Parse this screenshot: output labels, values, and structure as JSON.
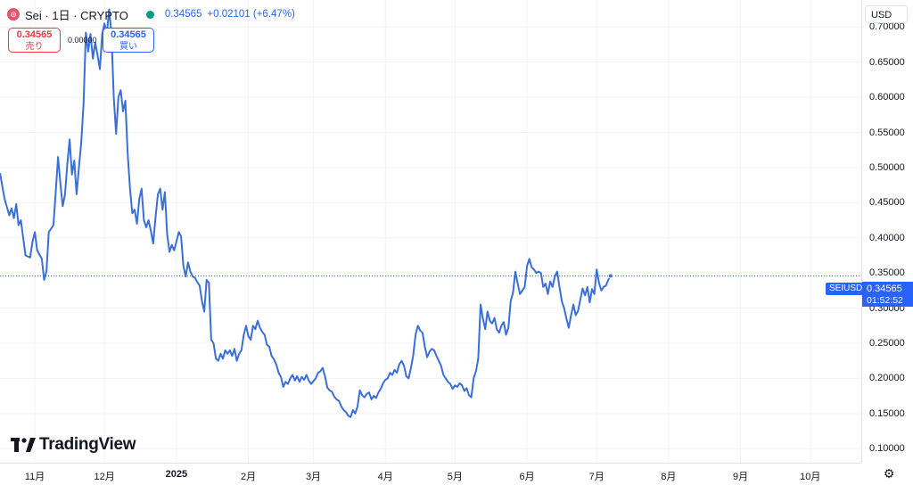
{
  "header": {
    "symbol_icon": "sei-coin-icon",
    "symbol": "Sei · 1日 · CRYPTO",
    "price": "0.34565",
    "change": "+0.02101 (+6.47%)",
    "status_color": "#089981"
  },
  "trade": {
    "sell_price": "0.34565",
    "sell_label": "売り",
    "spread": "0.00000",
    "buy_price": "0.34565",
    "buy_label": "買い"
  },
  "currency": "USD",
  "settings_icon": "gear-icon",
  "logo": {
    "text": "TradingView"
  },
  "last_price": {
    "symbol": "SEIUSD",
    "price": "0.34565",
    "countdown": "01:52:52"
  },
  "colors": {
    "line": "#3a6fd8",
    "accent": "#2962ff",
    "sell": "#f23645"
  },
  "chart_data": {
    "type": "line",
    "title": "",
    "series_name": "SEIUSD",
    "ylim": [
      0.08,
      0.7384
    ],
    "y_ticks": [
      "0.70000",
      "0.65000",
      "0.60000",
      "0.55000",
      "0.50000",
      "0.45000",
      "0.40000",
      "0.35000",
      "0.30000",
      "0.25000",
      "0.20000",
      "0.15000",
      "0.10000"
    ],
    "x_ticks": [
      {
        "label": "11月",
        "date": "2024-11-01"
      },
      {
        "label": "12月",
        "date": "2024-12-01"
      },
      {
        "label": "2025",
        "date": "2025-01-01",
        "bold": true
      },
      {
        "label": "2月",
        "date": "2025-02-01"
      },
      {
        "label": "3月",
        "date": "2025-03-01"
      },
      {
        "label": "4月",
        "date": "2025-04-01"
      },
      {
        "label": "5月",
        "date": "2025-05-01"
      },
      {
        "label": "6月",
        "date": "2025-06-01"
      },
      {
        "label": "7月",
        "date": "2025-07-01"
      },
      {
        "label": "8月",
        "date": "2025-08-01"
      },
      {
        "label": "9月",
        "date": "2025-09-01"
      },
      {
        "label": "10月",
        "date": "2025-10-01"
      }
    ],
    "x_range": [
      "2024-10-17",
      "2025-10-23"
    ],
    "last_value": 0.34565,
    "points": [
      [
        "2024-10-17",
        0.492
      ],
      [
        "2024-10-19",
        0.455
      ],
      [
        "2024-10-21",
        0.432
      ],
      [
        "2024-10-22",
        0.442
      ],
      [
        "2024-10-23",
        0.428
      ],
      [
        "2024-10-24",
        0.448
      ],
      [
        "2024-10-25",
        0.418
      ],
      [
        "2024-10-26",
        0.425
      ],
      [
        "2024-10-28",
        0.375
      ],
      [
        "2024-10-30",
        0.372
      ],
      [
        "2024-10-31",
        0.395
      ],
      [
        "2024-11-01",
        0.408
      ],
      [
        "2024-11-02",
        0.382
      ],
      [
        "2024-11-04",
        0.37
      ],
      [
        "2024-11-05",
        0.34
      ],
      [
        "2024-11-06",
        0.352
      ],
      [
        "2024-11-07",
        0.408
      ],
      [
        "2024-11-09",
        0.418
      ],
      [
        "2024-11-10",
        0.465
      ],
      [
        "2024-11-11",
        0.515
      ],
      [
        "2024-11-12",
        0.478
      ],
      [
        "2024-11-13",
        0.445
      ],
      [
        "2024-11-14",
        0.462
      ],
      [
        "2024-11-15",
        0.505
      ],
      [
        "2024-11-16",
        0.54
      ],
      [
        "2024-11-17",
        0.49
      ],
      [
        "2024-11-18",
        0.51
      ],
      [
        "2024-11-19",
        0.462
      ],
      [
        "2024-11-20",
        0.5
      ],
      [
        "2024-11-21",
        0.535
      ],
      [
        "2024-11-22",
        0.59
      ],
      [
        "2024-11-23",
        0.692
      ],
      [
        "2024-11-24",
        0.665
      ],
      [
        "2024-11-25",
        0.69
      ],
      [
        "2024-11-26",
        0.655
      ],
      [
        "2024-11-27",
        0.678
      ],
      [
        "2024-11-28",
        0.66
      ],
      [
        "2024-11-29",
        0.64
      ],
      [
        "2024-11-30",
        0.69
      ],
      [
        "2024-12-01",
        0.705
      ],
      [
        "2024-12-02",
        0.69
      ],
      [
        "2024-12-03",
        0.725
      ],
      [
        "2024-12-04",
        0.69
      ],
      [
        "2024-12-05",
        0.6
      ],
      [
        "2024-12-06",
        0.548
      ],
      [
        "2024-12-07",
        0.6
      ],
      [
        "2024-12-08",
        0.61
      ],
      [
        "2024-12-09",
        0.58
      ],
      [
        "2024-12-10",
        0.595
      ],
      [
        "2024-12-11",
        0.52
      ],
      [
        "2024-12-12",
        0.47
      ],
      [
        "2024-12-13",
        0.435
      ],
      [
        "2024-12-14",
        0.44
      ],
      [
        "2024-12-15",
        0.42
      ],
      [
        "2024-12-16",
        0.455
      ],
      [
        "2024-12-17",
        0.47
      ],
      [
        "2024-12-18",
        0.425
      ],
      [
        "2024-12-19",
        0.415
      ],
      [
        "2024-12-20",
        0.425
      ],
      [
        "2024-12-21",
        0.41
      ],
      [
        "2024-12-22",
        0.392
      ],
      [
        "2024-12-23",
        0.43
      ],
      [
        "2024-12-24",
        0.462
      ],
      [
        "2024-12-25",
        0.47
      ],
      [
        "2024-12-26",
        0.44
      ],
      [
        "2024-12-27",
        0.465
      ],
      [
        "2024-12-28",
        0.405
      ],
      [
        "2024-12-29",
        0.38
      ],
      [
        "2024-12-30",
        0.39
      ],
      [
        "2024-12-31",
        0.382
      ],
      [
        "2025-01-01",
        0.395
      ],
      [
        "2025-01-02",
        0.408
      ],
      [
        "2025-01-03",
        0.402
      ],
      [
        "2025-01-04",
        0.36
      ],
      [
        "2025-01-05",
        0.345
      ],
      [
        "2025-01-06",
        0.365
      ],
      [
        "2025-01-07",
        0.352
      ],
      [
        "2025-01-08",
        0.345
      ],
      [
        "2025-01-09",
        0.343
      ],
      [
        "2025-01-10",
        0.337
      ],
      [
        "2025-01-11",
        0.332
      ],
      [
        "2025-01-12",
        0.31
      ],
      [
        "2025-01-13",
        0.295
      ],
      [
        "2025-01-14",
        0.34
      ],
      [
        "2025-01-15",
        0.336
      ],
      [
        "2025-01-16",
        0.255
      ],
      [
        "2025-01-17",
        0.25
      ],
      [
        "2025-01-18",
        0.228
      ],
      [
        "2025-01-19",
        0.225
      ],
      [
        "2025-01-20",
        0.235
      ],
      [
        "2025-01-21",
        0.228
      ],
      [
        "2025-01-22",
        0.24
      ],
      [
        "2025-01-23",
        0.235
      ],
      [
        "2025-01-24",
        0.24
      ],
      [
        "2025-01-25",
        0.232
      ],
      [
        "2025-01-26",
        0.242
      ],
      [
        "2025-01-27",
        0.225
      ],
      [
        "2025-01-28",
        0.235
      ],
      [
        "2025-01-29",
        0.24
      ],
      [
        "2025-01-30",
        0.262
      ],
      [
        "2025-01-31",
        0.275
      ],
      [
        "2025-02-01",
        0.26
      ],
      [
        "2025-02-02",
        0.255
      ],
      [
        "2025-02-03",
        0.275
      ],
      [
        "2025-02-04",
        0.27
      ],
      [
        "2025-02-05",
        0.282
      ],
      [
        "2025-02-06",
        0.272
      ],
      [
        "2025-02-07",
        0.266
      ],
      [
        "2025-02-08",
        0.262
      ],
      [
        "2025-02-09",
        0.248
      ],
      [
        "2025-02-10",
        0.245
      ],
      [
        "2025-02-11",
        0.232
      ],
      [
        "2025-02-12",
        0.227
      ],
      [
        "2025-02-13",
        0.22
      ],
      [
        "2025-02-14",
        0.208
      ],
      [
        "2025-02-15",
        0.202
      ],
      [
        "2025-02-16",
        0.188
      ],
      [
        "2025-02-17",
        0.195
      ],
      [
        "2025-02-18",
        0.192
      ],
      [
        "2025-02-19",
        0.2
      ],
      [
        "2025-02-20",
        0.205
      ],
      [
        "2025-02-21",
        0.197
      ],
      [
        "2025-02-22",
        0.203
      ],
      [
        "2025-02-23",
        0.195
      ],
      [
        "2025-02-24",
        0.202
      ],
      [
        "2025-02-25",
        0.198
      ],
      [
        "2025-02-26",
        0.205
      ],
      [
        "2025-02-27",
        0.197
      ],
      [
        "2025-02-28",
        0.192
      ],
      [
        "2025-03-02",
        0.2
      ],
      [
        "2025-03-03",
        0.208
      ],
      [
        "2025-03-04",
        0.21
      ],
      [
        "2025-03-05",
        0.215
      ],
      [
        "2025-03-06",
        0.203
      ],
      [
        "2025-03-07",
        0.187
      ],
      [
        "2025-03-08",
        0.183
      ],
      [
        "2025-03-09",
        0.181
      ],
      [
        "2025-03-10",
        0.174
      ],
      [
        "2025-03-11",
        0.17
      ],
      [
        "2025-03-12",
        0.168
      ],
      [
        "2025-03-13",
        0.16
      ],
      [
        "2025-03-14",
        0.155
      ],
      [
        "2025-03-15",
        0.152
      ],
      [
        "2025-03-16",
        0.147
      ],
      [
        "2025-03-17",
        0.145
      ],
      [
        "2025-03-18",
        0.155
      ],
      [
        "2025-03-19",
        0.15
      ],
      [
        "2025-03-20",
        0.16
      ],
      [
        "2025-03-21",
        0.183
      ],
      [
        "2025-03-22",
        0.176
      ],
      [
        "2025-03-23",
        0.173
      ],
      [
        "2025-03-24",
        0.178
      ],
      [
        "2025-03-25",
        0.18
      ],
      [
        "2025-03-26",
        0.17
      ],
      [
        "2025-03-27",
        0.175
      ],
      [
        "2025-03-28",
        0.172
      ],
      [
        "2025-03-29",
        0.18
      ],
      [
        "2025-03-30",
        0.185
      ],
      [
        "2025-03-31",
        0.193
      ],
      [
        "2025-04-01",
        0.198
      ],
      [
        "2025-04-02",
        0.2
      ],
      [
        "2025-04-03",
        0.208
      ],
      [
        "2025-04-04",
        0.205
      ],
      [
        "2025-04-05",
        0.212
      ],
      [
        "2025-04-06",
        0.208
      ],
      [
        "2025-04-07",
        0.22
      ],
      [
        "2025-04-08",
        0.225
      ],
      [
        "2025-04-09",
        0.218
      ],
      [
        "2025-04-10",
        0.203
      ],
      [
        "2025-04-11",
        0.2
      ],
      [
        "2025-04-12",
        0.215
      ],
      [
        "2025-04-13",
        0.233
      ],
      [
        "2025-04-14",
        0.262
      ],
      [
        "2025-04-15",
        0.275
      ],
      [
        "2025-04-16",
        0.268
      ],
      [
        "2025-04-17",
        0.265
      ],
      [
        "2025-04-18",
        0.245
      ],
      [
        "2025-04-19",
        0.23
      ],
      [
        "2025-04-20",
        0.238
      ],
      [
        "2025-04-21",
        0.242
      ],
      [
        "2025-04-22",
        0.24
      ],
      [
        "2025-04-23",
        0.232
      ],
      [
        "2025-04-24",
        0.225
      ],
      [
        "2025-04-25",
        0.218
      ],
      [
        "2025-04-26",
        0.205
      ],
      [
        "2025-04-27",
        0.2
      ],
      [
        "2025-04-28",
        0.195
      ],
      [
        "2025-04-29",
        0.192
      ],
      [
        "2025-04-30",
        0.185
      ],
      [
        "2025-05-01",
        0.19
      ],
      [
        "2025-05-02",
        0.188
      ],
      [
        "2025-05-03",
        0.193
      ],
      [
        "2025-05-04",
        0.19
      ],
      [
        "2025-05-05",
        0.182
      ],
      [
        "2025-05-06",
        0.186
      ],
      [
        "2025-05-07",
        0.176
      ],
      [
        "2025-05-08",
        0.173
      ],
      [
        "2025-05-09",
        0.2
      ],
      [
        "2025-05-10",
        0.21
      ],
      [
        "2025-05-11",
        0.228
      ],
      [
        "2025-05-12",
        0.305
      ],
      [
        "2025-05-13",
        0.285
      ],
      [
        "2025-05-14",
        0.27
      ],
      [
        "2025-05-15",
        0.295
      ],
      [
        "2025-05-16",
        0.282
      ],
      [
        "2025-05-17",
        0.278
      ],
      [
        "2025-05-18",
        0.286
      ],
      [
        "2025-05-19",
        0.27
      ],
      [
        "2025-05-20",
        0.265
      ],
      [
        "2025-05-21",
        0.275
      ],
      [
        "2025-05-22",
        0.28
      ],
      [
        "2025-05-23",
        0.262
      ],
      [
        "2025-05-24",
        0.272
      ],
      [
        "2025-05-25",
        0.31
      ],
      [
        "2025-05-26",
        0.322
      ],
      [
        "2025-05-27",
        0.352
      ],
      [
        "2025-05-28",
        0.335
      ],
      [
        "2025-05-29",
        0.32
      ],
      [
        "2025-05-30",
        0.325
      ],
      [
        "2025-05-31",
        0.33
      ],
      [
        "2025-06-01",
        0.36
      ],
      [
        "2025-06-02",
        0.37
      ],
      [
        "2025-06-03",
        0.358
      ],
      [
        "2025-06-04",
        0.355
      ],
      [
        "2025-06-05",
        0.35
      ],
      [
        "2025-06-06",
        0.352
      ],
      [
        "2025-06-07",
        0.35
      ],
      [
        "2025-06-08",
        0.33
      ],
      [
        "2025-06-09",
        0.335
      ],
      [
        "2025-06-10",
        0.32
      ],
      [
        "2025-06-11",
        0.338
      ],
      [
        "2025-06-12",
        0.33
      ],
      [
        "2025-06-13",
        0.345
      ],
      [
        "2025-06-14",
        0.352
      ],
      [
        "2025-06-15",
        0.33
      ],
      [
        "2025-06-16",
        0.31
      ],
      [
        "2025-06-17",
        0.3
      ],
      [
        "2025-06-18",
        0.285
      ],
      [
        "2025-06-19",
        0.272
      ],
      [
        "2025-06-20",
        0.29
      ],
      [
        "2025-06-21",
        0.305
      ],
      [
        "2025-06-22",
        0.29
      ],
      [
        "2025-06-23",
        0.296
      ],
      [
        "2025-06-24",
        0.312
      ],
      [
        "2025-06-25",
        0.328
      ],
      [
        "2025-06-26",
        0.318
      ],
      [
        "2025-06-27",
        0.33
      ],
      [
        "2025-06-28",
        0.308
      ],
      [
        "2025-06-29",
        0.327
      ],
      [
        "2025-06-30",
        0.32
      ],
      [
        "2025-07-01",
        0.355
      ],
      [
        "2025-07-02",
        0.336
      ],
      [
        "2025-07-03",
        0.325
      ],
      [
        "2025-07-04",
        0.33
      ],
      [
        "2025-07-05",
        0.332
      ],
      [
        "2025-07-06",
        0.34
      ],
      [
        "2025-07-07",
        0.3457
      ]
    ]
  }
}
